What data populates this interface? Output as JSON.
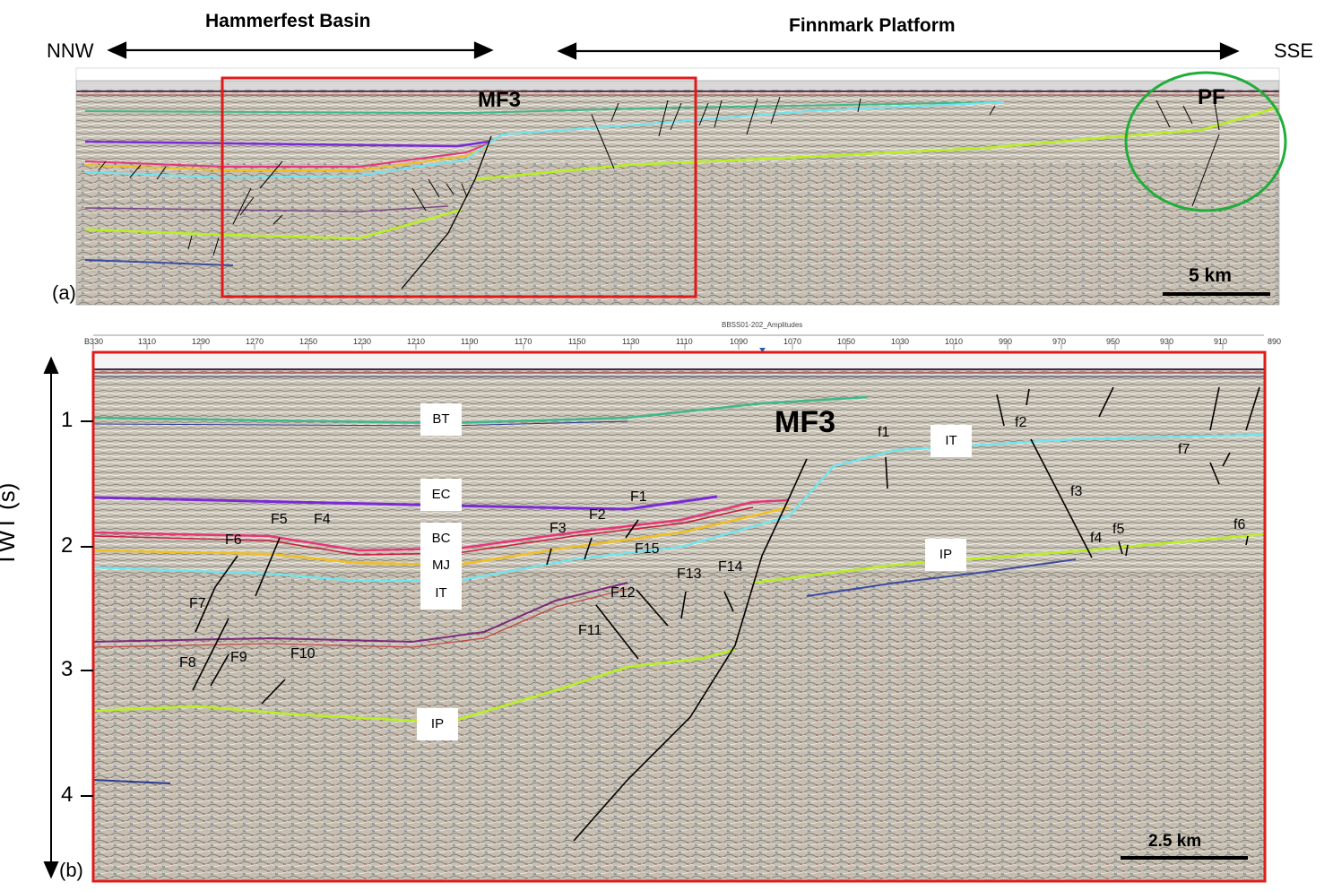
{
  "header": {
    "basin_label": "Hammerfest Basin",
    "platform_label": "Finnmark Platform",
    "dir_left": "NNW",
    "dir_right": "SSE"
  },
  "panel_a": {
    "label": "(a)",
    "fault_mf3": "MF3",
    "fault_pf": "PF",
    "scale_label": "5 km"
  },
  "panel_b": {
    "label": "(b)",
    "line_name": "BBSS01-202_Amplitudes",
    "trace_ticks": [
      "B330",
      "1310",
      "1290",
      "1270",
      "1250",
      "1230",
      "1210",
      "1190",
      "1170",
      "1150",
      "1130",
      "1110",
      "1090",
      "1070",
      "1050",
      "1030",
      "1010",
      "990",
      "970",
      "950",
      "930",
      "910",
      "890"
    ],
    "axis_label": "TWT (s)",
    "twt_ticks": [
      "1",
      "2",
      "3",
      "4"
    ],
    "scale_label": "2.5 km",
    "fault_mf3": "MF3",
    "horizon_boxes": [
      "BT",
      "EC",
      "BC",
      "MJ",
      "IT",
      "IP",
      "IT",
      "IP"
    ],
    "fault_labels": [
      "F1",
      "F2",
      "F3",
      "F4",
      "F5",
      "F6",
      "F7",
      "F8",
      "F9",
      "F10",
      "F11",
      "F12",
      "F13",
      "F14",
      "F15",
      "f1",
      "f2",
      "f3",
      "f4",
      "f5",
      "f6",
      "f7"
    ]
  },
  "colors": {
    "frame_red": "#e01a1a",
    "circle_green": "#1fae3a",
    "horizon_bt": "#3fb88a",
    "horizon_ec": "#7a2ad6",
    "horizon_bc": "#e8357a",
    "horizon_mj": "#f0c020",
    "horizon_it": "#6ee6f0",
    "horizon_ip": "#b8f020",
    "seismic_bg": "#c8c2b6"
  }
}
